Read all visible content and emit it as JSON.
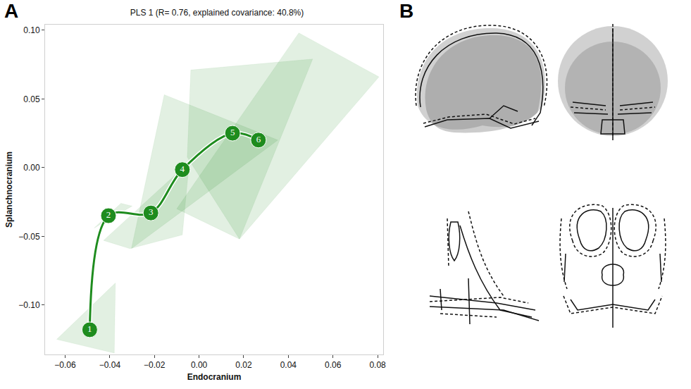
{
  "chart_data": {
    "type": "line",
    "title": "PLS 1 (R= 0.76, explained covariance: 40.8%)",
    "x_label": "Endocranium",
    "y_label": "Splanchnocranium",
    "panel_letters": [
      "A",
      "B"
    ],
    "color": "#1e8c1e",
    "marker": "circle",
    "line_style": "spline",
    "grid": false,
    "xlim": [
      -0.069,
      0.0825
    ],
    "ylim": [
      -0.136,
      0.104
    ],
    "xticks": [
      {
        "value": -0.06,
        "label": "−0.06"
      },
      {
        "value": -0.04,
        "label": "−0.04"
      },
      {
        "value": -0.02,
        "label": "−0.02"
      },
      {
        "value": 0,
        "label": "0.00"
      },
      {
        "value": 0.02,
        "label": "0.02"
      },
      {
        "value": 0.04,
        "label": "0.04"
      },
      {
        "value": 0.06,
        "label": "0.06"
      },
      {
        "value": 0.08,
        "label": "0.08"
      }
    ],
    "yticks": [
      {
        "value": -0.1,
        "label": "−0.10"
      },
      {
        "value": -0.05,
        "label": "−0.05"
      },
      {
        "value": 0,
        "label": "0.00"
      },
      {
        "value": 0.05,
        "label": "0.05"
      },
      {
        "value": 0.1,
        "label": "0.10"
      }
    ],
    "series": [
      {
        "name": "1",
        "x": -0.049,
        "y": -0.118,
        "hull_x": [
          -0.0638,
          -0.0375,
          -0.038
        ],
        "hull_y": [
          -0.125,
          -0.084,
          -0.135
        ]
      },
      {
        "name": "2",
        "x": -0.0406,
        "y": -0.035,
        "hull_x": [
          -0.047,
          -0.035,
          -0.03
        ],
        "hull_y": [
          -0.044,
          -0.026,
          -0.028
        ]
      },
      {
        "name": "3",
        "x": -0.0216,
        "y": -0.033,
        "hull_x": [
          -0.0428,
          -0.0044,
          -0.0075,
          -0.031
        ],
        "hull_y": [
          -0.053,
          0.004,
          -0.049,
          -0.059
        ]
      },
      {
        "name": "4",
        "x": -0.0075,
        "y": -0.0015,
        "hull_x": [
          -0.0156,
          0.0353,
          -0.0303
        ],
        "hull_y": [
          0.053,
          0.02,
          -0.059
        ]
      },
      {
        "name": "5",
        "x": 0.015,
        "y": 0.025,
        "hull_x": [
          -0.0037,
          0.0509,
          0.0181,
          -0.0053
        ],
        "hull_y": [
          0.071,
          0.079,
          -0.052,
          0.0076
        ]
      },
      {
        "name": "6",
        "x": 0.0266,
        "y": 0.02,
        "hull_x": [
          0.0447,
          0.0806,
          0.0181,
          -0.01
        ],
        "hull_y": [
          0.098,
          0.066,
          -0.052,
          -0.03
        ]
      }
    ]
  }
}
